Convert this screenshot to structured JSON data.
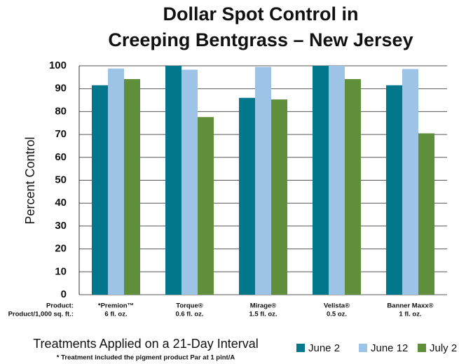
{
  "chart_data": {
    "type": "bar",
    "title": [
      "Dollar Spot Control in",
      "Creeping Bentgrass – New Jersey"
    ],
    "y_label": "Percent Control",
    "x_label": "Treatments Applied on a 21-Day Interval",
    "footnote": "* Treatment included the pigment product Par at 1 pint/A",
    "row_labels": [
      "Product:",
      "Product/1,000 sq. ft.:"
    ],
    "categories": [
      "*Premion™",
      "Torque®",
      "Mirage®",
      "Velista®",
      "Banner Maxx®"
    ],
    "rates": [
      "6 fl. oz.",
      "0.6 fl. oz.",
      "1.5 fl. oz.",
      "0.5 oz.",
      "1 fl. oz."
    ],
    "series": [
      {
        "name": "June 2",
        "color": "#00778a",
        "values": [
          91.5,
          100,
          86,
          100,
          91.5
        ]
      },
      {
        "name": "June 12",
        "color": "#9dc3e6",
        "values": [
          98.8,
          98.3,
          99.5,
          100,
          98.6
        ]
      },
      {
        "name": "July 2",
        "color": "#5f8f3a",
        "values": [
          94.2,
          77.6,
          85.3,
          94.2,
          70.5
        ]
      }
    ],
    "ylim": [
      0,
      100
    ],
    "yticks": [
      0,
      10,
      20,
      30,
      40,
      50,
      60,
      70,
      80,
      90,
      100
    ],
    "grid": true,
    "legend": "lower right"
  }
}
